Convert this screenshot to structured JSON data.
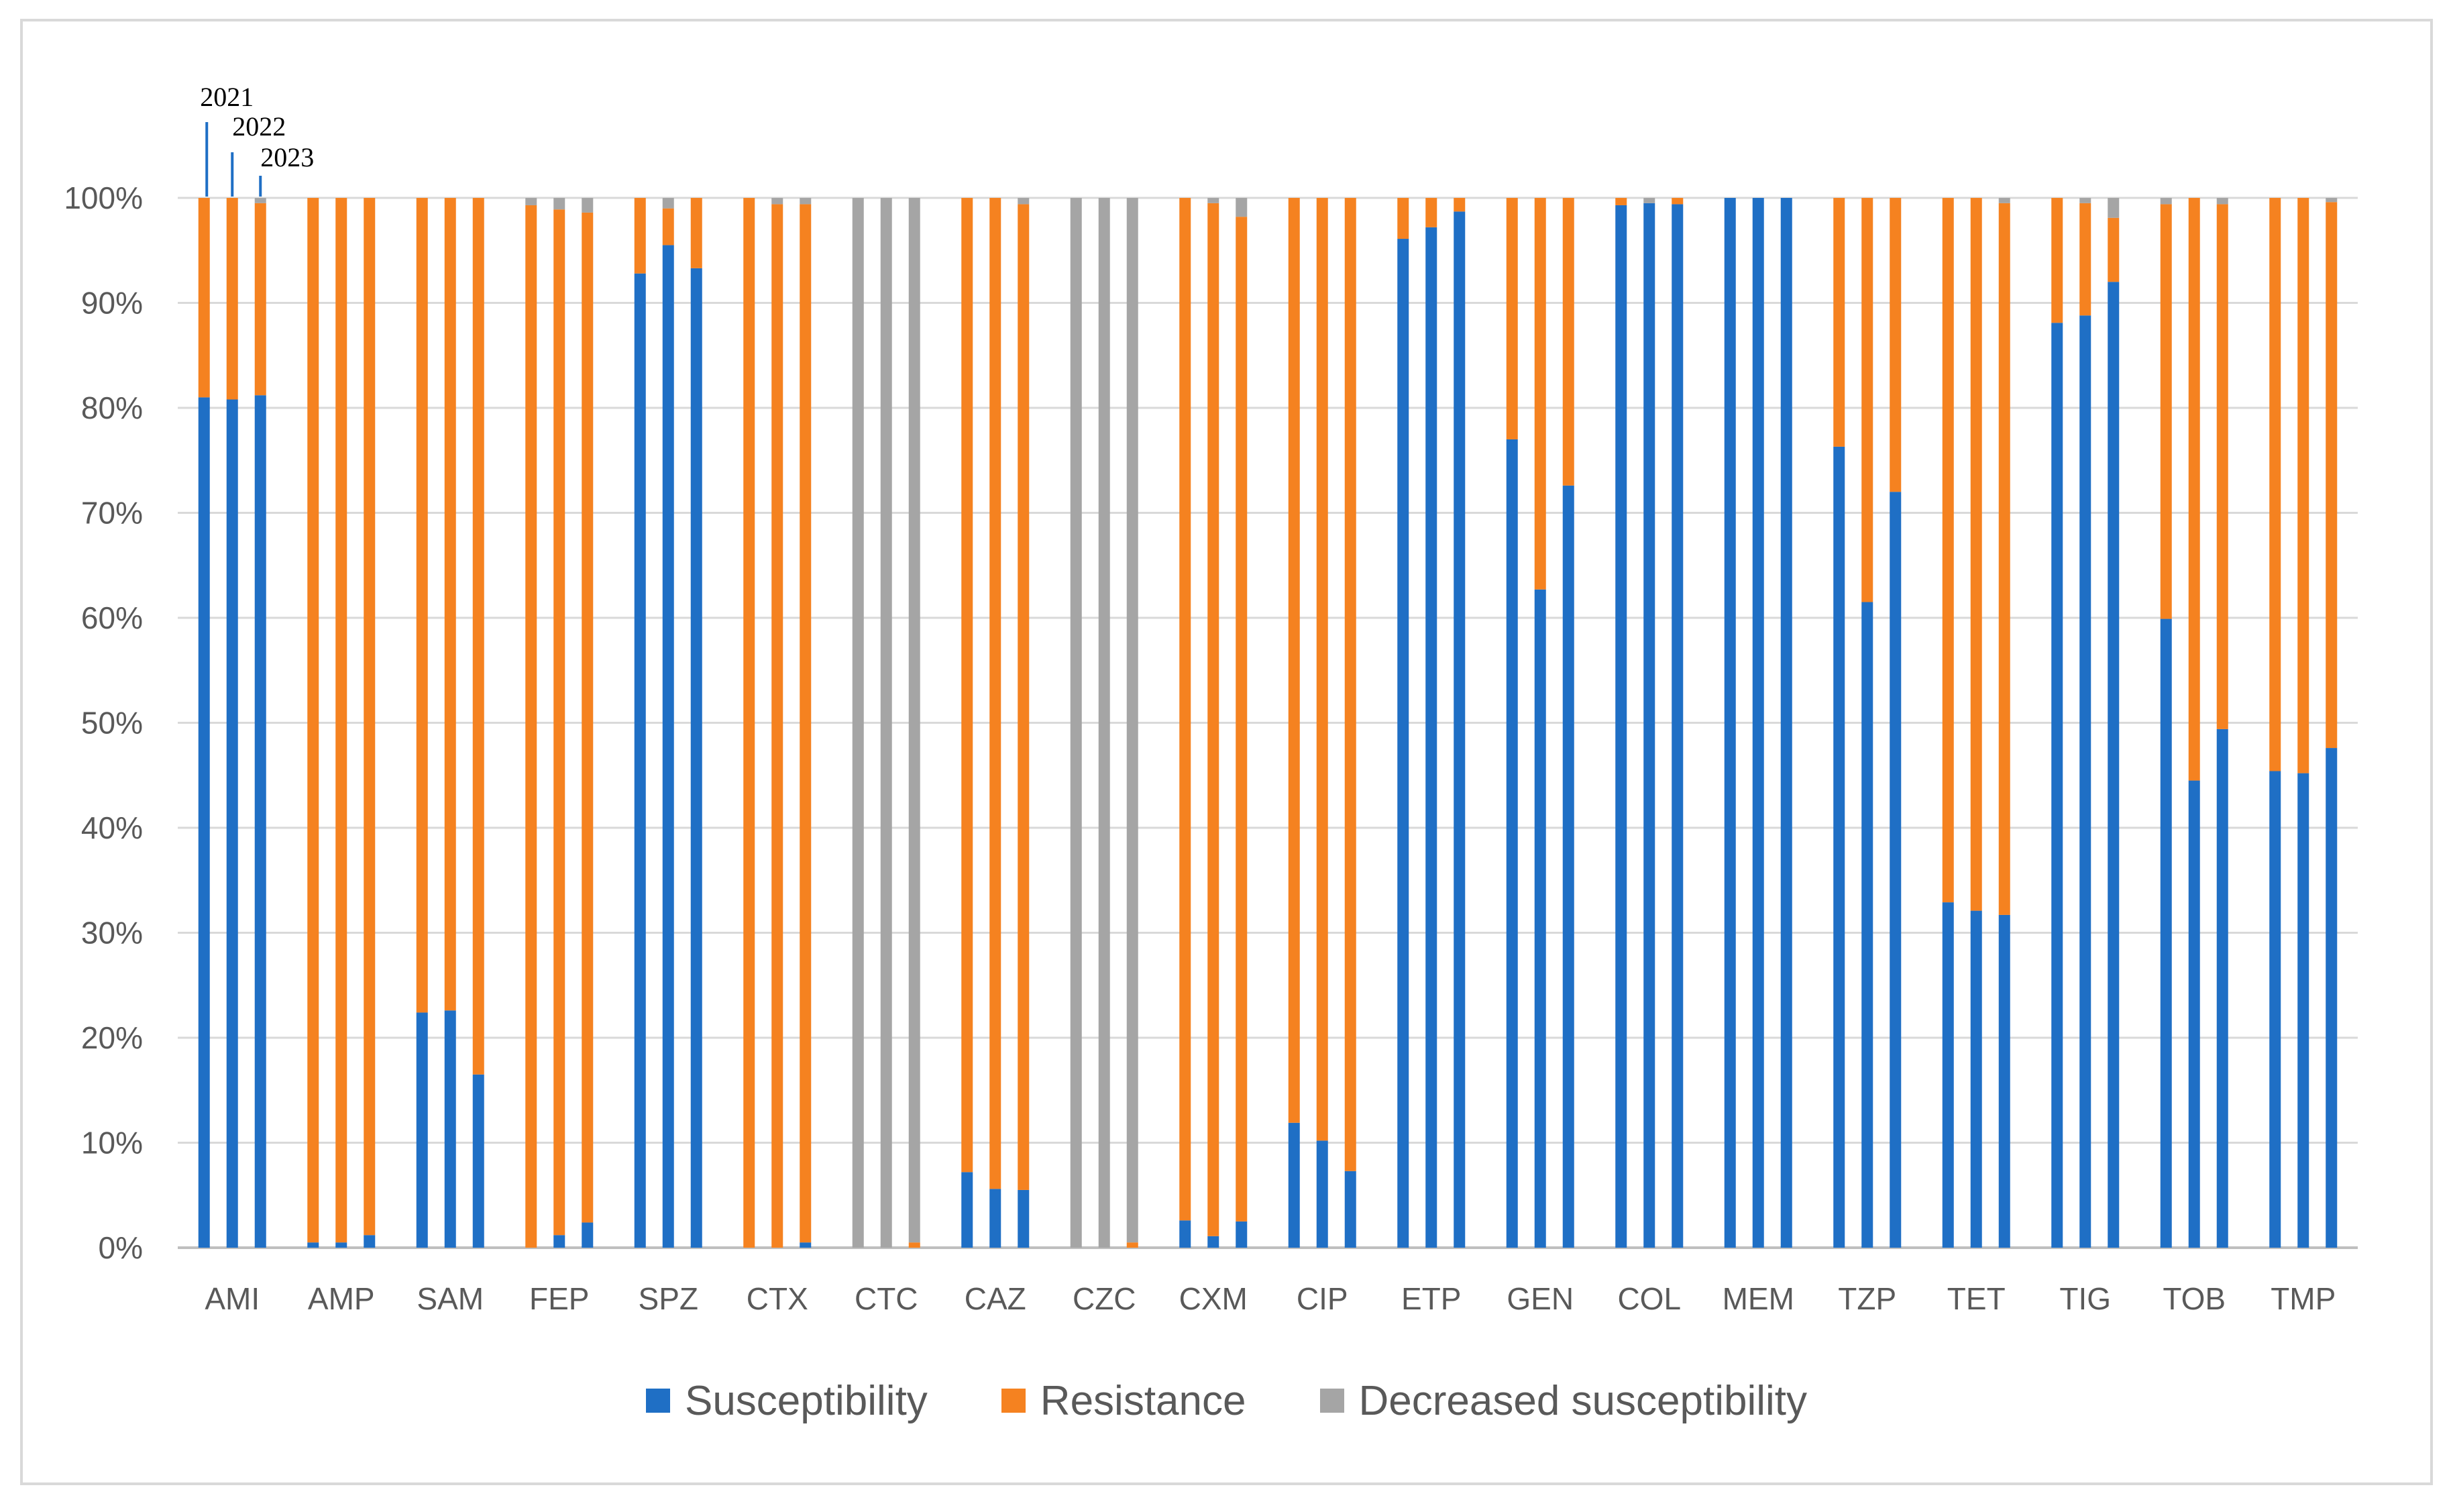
{
  "chart_data": {
    "type": "bar",
    "stacked": true,
    "percent_stacked": true,
    "categories": [
      "AMI",
      "AMP",
      "SAM",
      "FEP",
      "SPZ",
      "CTX",
      "CTC",
      "CAZ",
      "CZC",
      "CXM",
      "CIP",
      "ETP",
      "GEN",
      "COL",
      "MEM",
      "TZP",
      "TET",
      "TIG",
      "TOB",
      "TMP"
    ],
    "years": [
      "2021",
      "2022",
      "2023"
    ],
    "annotation_category": "AMI",
    "y_ticks": [
      "0%",
      "10%",
      "20%",
      "30%",
      "40%",
      "50%",
      "60%",
      "70%",
      "80%",
      "90%",
      "100%"
    ],
    "ylim": [
      0,
      100
    ],
    "grid": true,
    "legend_position": "bottom",
    "series": [
      {
        "name": "Susceptibility",
        "color": "#1f6fc5",
        "values": [
          [
            81,
            80.8,
            81.2
          ],
          [
            0.5,
            0.5,
            1.2
          ],
          [
            22.4,
            22.6,
            16.5
          ],
          [
            0,
            1.2,
            2.4
          ],
          [
            92.8,
            95.5,
            93.3
          ],
          [
            0,
            0,
            0.5
          ],
          [
            0,
            0,
            0
          ],
          [
            7.2,
            5.6,
            5.5
          ],
          [
            0,
            0,
            0
          ],
          [
            2.6,
            1.1,
            2.5
          ],
          [
            11.9,
            10.2,
            7.3
          ],
          [
            96.1,
            97.2,
            98.7
          ],
          [
            77,
            62.7,
            72.6
          ],
          [
            99.3,
            99.5,
            99.4
          ],
          [
            100,
            100,
            100
          ],
          [
            76.3,
            61.5,
            72
          ],
          [
            32.9,
            32.1,
            31.7
          ],
          [
            88.1,
            88.8,
            92
          ],
          [
            59.9,
            44.5,
            49.4
          ],
          [
            45.4,
            45.2,
            47.6
          ]
        ]
      },
      {
        "name": "Resistance",
        "color": "#f58220",
        "values": [
          [
            19,
            19.2,
            18.3
          ],
          [
            99.5,
            99.5,
            98.8
          ],
          [
            77.6,
            77.4,
            83.5
          ],
          [
            99.3,
            97.7,
            96.2
          ],
          [
            7.2,
            3.5,
            6.7
          ],
          [
            100,
            99.4,
            98.9
          ],
          [
            0,
            0,
            0.5
          ],
          [
            92.8,
            94.4,
            93.9
          ],
          [
            0,
            0,
            0.5
          ],
          [
            97.4,
            98.4,
            95.7
          ],
          [
            88.1,
            89.8,
            92.7
          ],
          [
            3.9,
            2.8,
            1.3
          ],
          [
            23,
            37.3,
            27.4
          ],
          [
            0.7,
            0,
            0.6
          ],
          [
            0,
            0,
            0
          ],
          [
            23.7,
            38.5,
            28
          ],
          [
            67.1,
            67.9,
            67.8
          ],
          [
            11.9,
            10.7,
            6.1
          ],
          [
            39.5,
            55.5,
            50
          ],
          [
            54.6,
            54.8,
            52
          ]
        ]
      },
      {
        "name": "Decreased susceptibility",
        "color": "#a5a5a5",
        "values": [
          [
            0,
            0,
            0.5
          ],
          [
            0,
            0,
            0
          ],
          [
            0,
            0,
            0
          ],
          [
            0.7,
            1.1,
            1.4
          ],
          [
            0,
            1,
            0
          ],
          [
            0,
            0.6,
            0.6
          ],
          [
            100,
            100,
            99.5
          ],
          [
            0,
            0,
            0.6
          ],
          [
            100,
            100,
            99.5
          ],
          [
            0,
            0.5,
            1.8
          ],
          [
            0,
            0,
            0
          ],
          [
            0,
            0,
            0
          ],
          [
            0,
            0,
            0
          ],
          [
            0,
            0.5,
            0
          ],
          [
            0,
            0,
            0
          ],
          [
            0,
            0,
            0
          ],
          [
            0,
            0,
            0.5
          ],
          [
            0,
            0.5,
            1.9
          ],
          [
            0.6,
            0,
            0.6
          ],
          [
            0,
            0,
            0.4
          ]
        ]
      }
    ]
  }
}
